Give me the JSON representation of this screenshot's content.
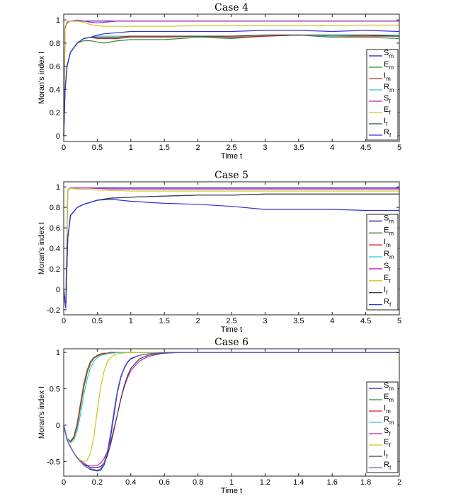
{
  "chart_data": [
    {
      "type": "line",
      "title": "Case 4",
      "xlabel": "Time t",
      "ylabel": "Moran's index I",
      "xlim": [
        0,
        5
      ],
      "ylim": [
        -0.05,
        1.05
      ],
      "xticks": [
        0,
        0.5,
        1,
        1.5,
        2,
        2.5,
        3,
        3.5,
        4,
        4.5,
        5
      ],
      "xticklabels": [
        "0",
        "0.5",
        "1",
        "1.5",
        "2",
        "2.5",
        "3",
        "3.5",
        "4",
        "4.5",
        "5"
      ],
      "yticks": [
        0,
        0.2,
        0.4,
        0.6,
        0.8,
        1
      ],
      "yticklabels": [
        "0",
        "0.2",
        "0.4",
        "0.6",
        "0.8",
        "1"
      ],
      "legend": "right",
      "x": [
        0,
        0.02,
        0.05,
        0.1,
        0.2,
        0.3,
        0.4,
        0.5,
        0.6,
        0.8,
        1,
        1.5,
        2,
        2.5,
        3,
        3.5,
        4,
        4.5,
        5
      ],
      "series": [
        {
          "name": "S",
          "sub": "m",
          "color": "#1a1aa8",
          "values": [
            0,
            0.93,
            0.98,
            0.99,
            0.99,
            0.99,
            0.99,
            0.99,
            0.99,
            0.99,
            0.99,
            0.99,
            0.99,
            0.99,
            0.99,
            0.99,
            0.99,
            0.99,
            0.99
          ]
        },
        {
          "name": "E",
          "sub": "m",
          "color": "#2e8b2e",
          "values": [
            0,
            0.4,
            0.6,
            0.72,
            0.8,
            0.82,
            0.82,
            0.81,
            0.8,
            0.82,
            0.83,
            0.83,
            0.85,
            0.84,
            0.86,
            0.87,
            0.85,
            0.85,
            0.84
          ]
        },
        {
          "name": "I",
          "sub": "m",
          "color": "#d42020",
          "values": [
            0,
            0.4,
            0.6,
            0.72,
            0.8,
            0.84,
            0.85,
            0.84,
            0.84,
            0.84,
            0.85,
            0.85,
            0.86,
            0.85,
            0.86,
            0.87,
            0.86,
            0.86,
            0.86
          ]
        },
        {
          "name": "R",
          "sub": "m",
          "color": "#30c8c8",
          "values": [
            0,
            0.4,
            0.6,
            0.72,
            0.8,
            0.84,
            0.85,
            0.86,
            0.86,
            0.86,
            0.86,
            0.86,
            0.86,
            0.86,
            0.87,
            0.87,
            0.86,
            0.87,
            0.87
          ]
        },
        {
          "name": "S",
          "sub": "f",
          "color": "#c020c0",
          "values": [
            0,
            0.93,
            0.98,
            0.99,
            1.0,
            0.99,
            0.98,
            0.975,
            0.98,
            0.99,
            0.99,
            0.99,
            0.99,
            0.99,
            0.99,
            0.99,
            0.99,
            0.99,
            0.99
          ]
        },
        {
          "name": "E",
          "sub": "f",
          "color": "#c8c820",
          "values": [
            0,
            0.92,
            0.97,
            0.99,
            0.99,
            0.98,
            0.96,
            0.95,
            0.945,
            0.945,
            0.945,
            0.945,
            0.95,
            0.95,
            0.95,
            0.95,
            0.95,
            0.955,
            0.955
          ]
        },
        {
          "name": "I",
          "sub": "f",
          "color": "#404040",
          "values": [
            0,
            0.4,
            0.6,
            0.72,
            0.8,
            0.84,
            0.85,
            0.85,
            0.85,
            0.85,
            0.86,
            0.86,
            0.86,
            0.86,
            0.87,
            0.87,
            0.87,
            0.87,
            0.86
          ]
        },
        {
          "name": "R",
          "sub": "f",
          "color": "#3030d8",
          "values": [
            0,
            0.4,
            0.6,
            0.72,
            0.8,
            0.84,
            0.85,
            0.87,
            0.88,
            0.89,
            0.9,
            0.9,
            0.9,
            0.9,
            0.91,
            0.91,
            0.9,
            0.91,
            0.9
          ]
        }
      ]
    },
    {
      "type": "line",
      "title": "Case 5",
      "xlabel": "Time t",
      "ylabel": "Moran's index I",
      "xlim": [
        0,
        5
      ],
      "ylim": [
        -0.25,
        1.05
      ],
      "xticks": [
        0,
        0.5,
        1,
        1.5,
        2,
        2.5,
        3,
        3.5,
        4,
        4.5,
        5
      ],
      "xticklabels": [
        "0",
        "0.5",
        "1",
        "1.5",
        "2",
        "2.5",
        "3",
        "3.5",
        "4",
        "4.5",
        "5"
      ],
      "yticks": [
        -0.2,
        0,
        0.2,
        0.4,
        0.6,
        0.8,
        1
      ],
      "yticklabels": [
        "-0.2",
        "0",
        "0.2",
        "0.4",
        "0.6",
        "0.8",
        "1"
      ],
      "legend": "right",
      "x": [
        0,
        0.03,
        0.06,
        0.1,
        0.2,
        0.3,
        0.5,
        0.7,
        1,
        1.5,
        2,
        2.5,
        3,
        3.5,
        4,
        4.5,
        5
      ],
      "series": [
        {
          "name": "S",
          "sub": "m",
          "color": "#1a1aa8",
          "values": [
            0,
            -0.18,
            0.97,
            0.99,
            0.99,
            0.99,
            0.99,
            0.99,
            0.99,
            0.99,
            0.99,
            0.99,
            0.99,
            0.99,
            0.99,
            0.99,
            0.99
          ]
        },
        {
          "name": "E",
          "sub": "m",
          "color": "#2e8b2e",
          "values": [
            0,
            -0.18,
            0.5,
            0.72,
            0.8,
            0.83,
            0.87,
            0.89,
            0.9,
            0.91,
            0.92,
            0.92,
            0.93,
            0.93,
            0.93,
            0.93,
            0.93
          ]
        },
        {
          "name": "I",
          "sub": "m",
          "color": "#d42020",
          "values": [
            0,
            -0.18,
            0.5,
            0.72,
            0.8,
            0.83,
            0.87,
            0.89,
            0.9,
            0.91,
            0.92,
            0.92,
            0.93,
            0.93,
            0.93,
            0.93,
            0.93
          ]
        },
        {
          "name": "R",
          "sub": "m",
          "color": "#30c8c8",
          "values": [
            0,
            -0.18,
            0.5,
            0.72,
            0.8,
            0.83,
            0.87,
            0.89,
            0.9,
            0.91,
            0.92,
            0.92,
            0.93,
            0.93,
            0.93,
            0.93,
            0.93
          ]
        },
        {
          "name": "S",
          "sub": "f",
          "color": "#c020c0",
          "values": [
            0,
            -0.18,
            0.97,
            0.99,
            0.99,
            0.99,
            0.985,
            0.98,
            0.98,
            0.98,
            0.98,
            0.98,
            0.98,
            0.98,
            0.98,
            0.98,
            0.98
          ]
        },
        {
          "name": "E",
          "sub": "f",
          "color": "#c8c820",
          "values": [
            0,
            -0.18,
            0.97,
            0.985,
            0.98,
            0.975,
            0.97,
            0.965,
            0.96,
            0.96,
            0.96,
            0.96,
            0.96,
            0.96,
            0.96,
            0.96,
            0.96
          ]
        },
        {
          "name": "I",
          "sub": "f",
          "color": "#404040",
          "values": [
            0,
            -0.18,
            0.5,
            0.72,
            0.8,
            0.83,
            0.87,
            0.89,
            0.9,
            0.91,
            0.92,
            0.92,
            0.93,
            0.93,
            0.93,
            0.93,
            0.93
          ]
        },
        {
          "name": "R",
          "sub": "f",
          "color": "#3030d8",
          "values": [
            0,
            -0.18,
            0.5,
            0.72,
            0.8,
            0.83,
            0.87,
            0.88,
            0.86,
            0.84,
            0.83,
            0.81,
            0.78,
            0.78,
            0.78,
            0.77,
            0.77
          ]
        }
      ]
    },
    {
      "type": "line",
      "title": "Case 6",
      "xlabel": "Time t",
      "ylabel": "Moran's index I",
      "xlim": [
        0,
        2
      ],
      "ylim": [
        -0.7,
        1.05
      ],
      "xticks": [
        0,
        0.2,
        0.4,
        0.6,
        0.8,
        1,
        1.2,
        1.4,
        1.6,
        1.8,
        2
      ],
      "xticklabels": [
        "0",
        "0.2",
        "0.4",
        "0.6",
        "0.8",
        "1",
        "1.2",
        "1.4",
        "1.6",
        "1.8",
        "2"
      ],
      "yticks": [
        -0.5,
        0,
        0.5,
        1
      ],
      "yticklabels": [
        "-0.5",
        "0",
        "0.5",
        "1"
      ],
      "legend": "right",
      "x": [
        0,
        0.02,
        0.04,
        0.06,
        0.08,
        0.1,
        0.12,
        0.14,
        0.16,
        0.18,
        0.2,
        0.22,
        0.24,
        0.26,
        0.28,
        0.3,
        0.32,
        0.34,
        0.36,
        0.38,
        0.4,
        0.45,
        0.5,
        0.55,
        0.6,
        0.7,
        1,
        2
      ],
      "series": [
        {
          "name": "S",
          "sub": "m",
          "color": "#1a1aa8",
          "values": [
            0,
            -0.2,
            -0.3,
            -0.38,
            -0.45,
            -0.5,
            -0.55,
            -0.58,
            -0.61,
            -0.62,
            -0.63,
            -0.62,
            -0.55,
            -0.4,
            -0.15,
            0.15,
            0.45,
            0.65,
            0.78,
            0.86,
            0.91,
            0.96,
            0.98,
            0.99,
            1,
            1,
            1,
            1
          ]
        },
        {
          "name": "E",
          "sub": "m",
          "color": "#2e8b2e",
          "values": [
            0,
            -0.18,
            -0.23,
            -0.18,
            -0.02,
            0.25,
            0.52,
            0.72,
            0.85,
            0.92,
            0.95,
            0.97,
            0.98,
            0.99,
            0.99,
            1,
            1,
            1,
            1,
            1,
            1,
            1,
            1,
            1,
            1,
            1,
            1,
            1
          ]
        },
        {
          "name": "I",
          "sub": "m",
          "color": "#d42020",
          "values": [
            0,
            -0.18,
            -0.22,
            -0.16,
            0.02,
            0.3,
            0.57,
            0.76,
            0.88,
            0.93,
            0.96,
            0.98,
            0.99,
            0.99,
            1,
            1,
            1,
            1,
            1,
            1,
            1,
            1,
            1,
            1,
            1,
            1,
            1,
            1
          ]
        },
        {
          "name": "R",
          "sub": "m",
          "color": "#30c8c8",
          "values": [
            0,
            -0.18,
            -0.24,
            -0.21,
            -0.08,
            0.15,
            0.42,
            0.64,
            0.79,
            0.88,
            0.93,
            0.96,
            0.97,
            0.98,
            0.99,
            0.99,
            1,
            1,
            1,
            1,
            1,
            1,
            1,
            1,
            1,
            1,
            1,
            1
          ]
        },
        {
          "name": "S",
          "sub": "f",
          "color": "#c020c0",
          "values": [
            0,
            -0.2,
            -0.3,
            -0.38,
            -0.44,
            -0.49,
            -0.52,
            -0.55,
            -0.56,
            -0.56,
            -0.55,
            -0.52,
            -0.46,
            -0.36,
            -0.22,
            -0.04,
            0.15,
            0.35,
            0.52,
            0.65,
            0.75,
            0.88,
            0.94,
            0.97,
            0.99,
            1,
            1,
            1
          ]
        },
        {
          "name": "E",
          "sub": "f",
          "color": "#c8c820",
          "values": [
            0,
            -0.2,
            -0.3,
            -0.38,
            -0.44,
            -0.48,
            -0.5,
            -0.48,
            -0.38,
            -0.15,
            0.2,
            0.52,
            0.74,
            0.87,
            0.93,
            0.96,
            0.98,
            0.99,
            0.99,
            1,
            1,
            1,
            1,
            1,
            1,
            1,
            1,
            1
          ]
        },
        {
          "name": "I",
          "sub": "f",
          "color": "#404040",
          "values": [
            0,
            -0.2,
            -0.3,
            -0.38,
            -0.45,
            -0.5,
            -0.54,
            -0.56,
            -0.58,
            -0.58,
            -0.58,
            -0.57,
            -0.52,
            -0.42,
            -0.26,
            -0.06,
            0.15,
            0.36,
            0.54,
            0.68,
            0.78,
            0.91,
            0.96,
            0.98,
            0.99,
            1,
            1,
            1
          ]
        },
        {
          "name": "R",
          "sub": "f",
          "color": "#6060e0",
          "values": [
            0,
            -0.2,
            -0.3,
            -0.38,
            -0.45,
            -0.5,
            -0.55,
            -0.58,
            -0.6,
            -0.61,
            -0.62,
            -0.6,
            -0.52,
            -0.36,
            -0.1,
            0.2,
            0.48,
            0.67,
            0.79,
            0.87,
            0.92,
            0.96,
            0.98,
            0.99,
            1,
            1,
            1,
            1
          ]
        }
      ]
    }
  ]
}
